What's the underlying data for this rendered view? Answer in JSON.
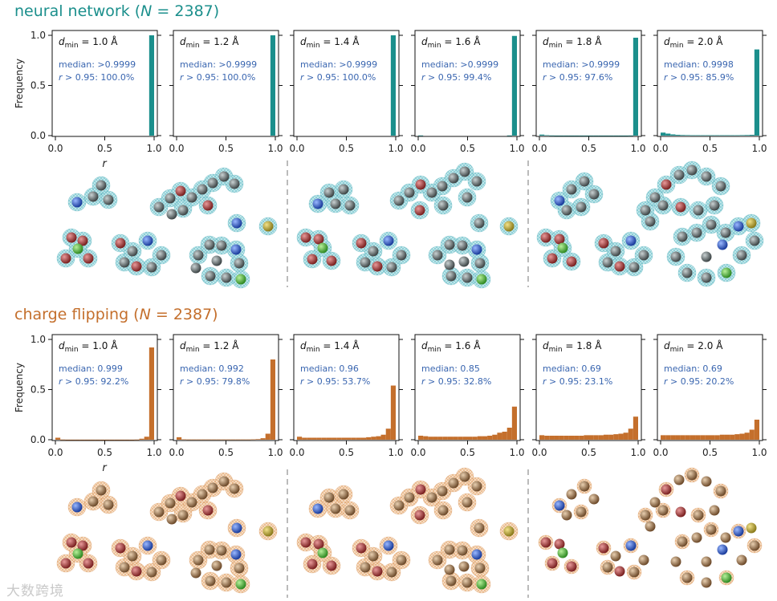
{
  "sections": [
    {
      "id": "nn",
      "title_prefix": "neural network (",
      "title_n_symbol": "N",
      "title_suffix": " = 2387)",
      "color": "#1b8f8c",
      "ylabel": "Frequency",
      "xlabel": "r"
    },
    {
      "id": "cf",
      "title_prefix": "charge flipping (",
      "title_n_symbol": "N",
      "title_suffix": " = 2387)",
      "color": "#c46f2c",
      "ylabel": "Frequency",
      "xlabel": "r"
    }
  ],
  "stat_color": "#3a66b0",
  "watermark": "大数跨境",
  "chart_data": [
    {
      "type": "bar",
      "section": "neural network (N = 2387)",
      "x_ticks": [
        "0.0",
        "0.5",
        "1.0"
      ],
      "y_ticks": [
        "0.0",
        "0.5",
        "1.0"
      ],
      "xlim": [
        0,
        1
      ],
      "ylim": [
        0,
        1
      ],
      "xlabel": "r",
      "ylabel": "Frequency",
      "bin_edges": [
        0.0,
        0.05,
        0.1,
        0.15,
        0.2,
        0.25,
        0.3,
        0.35,
        0.4,
        0.45,
        0.5,
        0.55,
        0.6,
        0.65,
        0.7,
        0.75,
        0.8,
        0.85,
        0.9,
        0.95,
        1.0
      ],
      "panels": [
        {
          "dmin": "1.0 Å",
          "median": "median: >0.9999",
          "r_frac": "r > 0.95: 100.0%",
          "values": [
            0,
            0,
            0,
            0,
            0,
            0,
            0,
            0,
            0,
            0,
            0,
            0,
            0,
            0,
            0,
            0,
            0,
            0,
            0,
            1.0
          ]
        },
        {
          "dmin": "1.2 Å",
          "median": "median: >0.9999",
          "r_frac": "r > 0.95: 100.0%",
          "values": [
            0,
            0,
            0,
            0,
            0,
            0,
            0,
            0,
            0,
            0,
            0,
            0,
            0,
            0,
            0,
            0,
            0,
            0,
            0,
            1.0
          ]
        },
        {
          "dmin": "1.4 Å",
          "median": "median: >0.9999",
          "r_frac": "r > 0.95: 100.0%",
          "values": [
            0,
            0,
            0,
            0,
            0,
            0,
            0,
            0,
            0,
            0,
            0,
            0,
            0,
            0,
            0,
            0,
            0,
            0,
            0,
            1.0
          ]
        },
        {
          "dmin": "1.6 Å",
          "median": "median: >0.9999",
          "r_frac": "r > 0.95: 99.4%",
          "values": [
            0.002,
            0,
            0,
            0,
            0,
            0,
            0,
            0,
            0,
            0,
            0,
            0,
            0,
            0,
            0,
            0,
            0,
            0,
            0.002,
            0.994
          ]
        },
        {
          "dmin": "1.8 Å",
          "median": "median: >0.9999",
          "r_frac": "r > 0.95: 97.6%",
          "values": [
            0.01,
            0.004,
            0.002,
            0.001,
            0.001,
            0.001,
            0.001,
            0.001,
            0.001,
            0.001,
            0.001,
            0.001,
            0.001,
            0.001,
            0.001,
            0.001,
            0.001,
            0.001,
            0.002,
            0.976
          ]
        },
        {
          "dmin": "2.0 Å",
          "median": "median: 0.9998",
          "r_frac": "r > 0.95: 85.9%",
          "values": [
            0.03,
            0.02,
            0.012,
            0.008,
            0.006,
            0.005,
            0.004,
            0.004,
            0.004,
            0.004,
            0.004,
            0.004,
            0.004,
            0.004,
            0.004,
            0.004,
            0.005,
            0.006,
            0.008,
            0.859
          ]
        }
      ]
    },
    {
      "type": "bar",
      "section": "charge flipping (N = 2387)",
      "x_ticks": [
        "0.0",
        "0.5",
        "1.0"
      ],
      "y_ticks": [
        "0.0",
        "0.5",
        "1.0"
      ],
      "xlim": [
        0,
        1
      ],
      "ylim": [
        0,
        1
      ],
      "xlabel": "r",
      "ylabel": "Frequency",
      "bin_edges": [
        0.0,
        0.05,
        0.1,
        0.15,
        0.2,
        0.25,
        0.3,
        0.35,
        0.4,
        0.45,
        0.5,
        0.55,
        0.6,
        0.65,
        0.7,
        0.75,
        0.8,
        0.85,
        0.9,
        0.95,
        1.0
      ],
      "panels": [
        {
          "dmin": "1.0 Å",
          "median": "median: 0.999",
          "r_frac": "r > 0.95: 92.2%",
          "values": [
            0.02,
            0.002,
            0.001,
            0.001,
            0.001,
            0.001,
            0.001,
            0.001,
            0.001,
            0.001,
            0.001,
            0.001,
            0.001,
            0.001,
            0.001,
            0.001,
            0.002,
            0.01,
            0.03,
            0.92
          ]
        },
        {
          "dmin": "1.2 Å",
          "median": "median: 0.992",
          "r_frac": "r > 0.95: 79.8%",
          "values": [
            0.025,
            0.004,
            0.003,
            0.003,
            0.003,
            0.003,
            0.003,
            0.003,
            0.003,
            0.003,
            0.003,
            0.003,
            0.003,
            0.003,
            0.003,
            0.004,
            0.006,
            0.015,
            0.06,
            0.8
          ]
        },
        {
          "dmin": "1.4 Å",
          "median": "median: 0.96",
          "r_frac": "r > 0.95: 53.7%",
          "values": [
            0.03,
            0.02,
            0.02,
            0.02,
            0.02,
            0.02,
            0.02,
            0.02,
            0.02,
            0.02,
            0.02,
            0.02,
            0.02,
            0.02,
            0.025,
            0.03,
            0.035,
            0.05,
            0.11,
            0.54
          ]
        },
        {
          "dmin": "1.6 Å",
          "median": "median: 0.85",
          "r_frac": "r > 0.95: 32.8%",
          "values": [
            0.04,
            0.035,
            0.03,
            0.03,
            0.03,
            0.03,
            0.03,
            0.03,
            0.03,
            0.03,
            0.03,
            0.03,
            0.035,
            0.035,
            0.04,
            0.05,
            0.07,
            0.08,
            0.12,
            0.33
          ]
        },
        {
          "dmin": "1.8 Å",
          "median": "median: 0.69",
          "r_frac": "r > 0.95: 23.1%",
          "values": [
            0.045,
            0.04,
            0.04,
            0.04,
            0.04,
            0.04,
            0.04,
            0.04,
            0.04,
            0.045,
            0.045,
            0.045,
            0.045,
            0.05,
            0.05,
            0.055,
            0.06,
            0.07,
            0.11,
            0.23
          ]
        },
        {
          "dmin": "2.0 Å",
          "median": "median: 0.69",
          "r_frac": "r > 0.95: 20.2%",
          "values": [
            0.045,
            0.045,
            0.045,
            0.045,
            0.045,
            0.045,
            0.045,
            0.045,
            0.045,
            0.045,
            0.045,
            0.045,
            0.05,
            0.05,
            0.05,
            0.055,
            0.06,
            0.07,
            0.1,
            0.2
          ]
        }
      ]
    }
  ]
}
